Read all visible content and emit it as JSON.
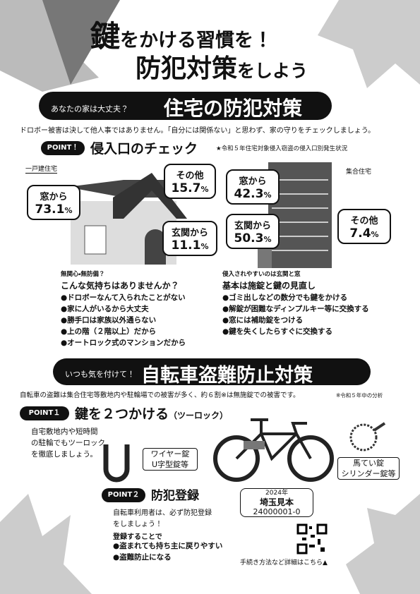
{
  "header": {
    "title_key": "鍵",
    "title_rest": "をかける習慣を！",
    "subtitle_main": "防犯対策",
    "subtitle_suffix": "をしよう"
  },
  "housing": {
    "tagline": "あなたの家は大丈夫？",
    "title": "住宅の防犯対策",
    "intro": "ドロボー被害は決して他人事ではありません。「自分には関係ない」と思わず、家の守りをチェックしましょう。",
    "point_badge": "POINT！",
    "point_heading": "侵入口のチェック",
    "stat_note": "★令和５年住宅対象侵入窃盗の侵入口別発生状況",
    "detached": {
      "label": "一戸建住宅",
      "items": [
        {
          "label": "窓から",
          "value": "73.1",
          "unit": "%"
        },
        {
          "label": "その他",
          "value": "15.7",
          "unit": "%"
        },
        {
          "label": "玄関から",
          "value": "11.1",
          "unit": "%"
        }
      ]
    },
    "apartment": {
      "label": "集合住宅",
      "items": [
        {
          "label": "窓から",
          "value": "42.3",
          "unit": "%"
        },
        {
          "label": "玄関から",
          "value": "50.3",
          "unit": "%"
        },
        {
          "label": "その他",
          "value": "7.4",
          "unit": "%"
        }
      ]
    },
    "mindset": {
      "kicker": "無関心・無防備？",
      "title": "こんな気持ちはありませんか？",
      "items": [
        "ドロボーなんて入られたことがない",
        "家に人がいるから大丈夫",
        "勝手口は家族以外通らない",
        "上の階（２階以上）だから",
        "オートロック式のマンションだから"
      ]
    },
    "basics": {
      "kicker": "侵入されやすいのは玄関と窓",
      "title": "基本は施錠と鍵の見直し",
      "items": [
        "ゴミ出しなどの数分でも鍵をかける",
        "解錠が困難なディンプルキー等に交換する",
        "窓には補助錠をつける",
        "鍵を失くしたらすぐに交換する"
      ]
    }
  },
  "bicycle": {
    "tagline": "いつも気を付けて！",
    "title": "自転車盗難防止対策",
    "intro": "自転車の盗難は集合住宅等敷地内や駐輪場での被害が多く、約６割※は無施錠での被害です。",
    "note": "※令和５年中の分析",
    "point1": {
      "badge": "POINT１",
      "heading": "鍵を２つかける",
      "subheading": "（ツーロック）",
      "text": [
        "自宅敷地内や短時間",
        "の駐輪でもツーロック",
        "を徹底しましょう。"
      ],
      "locks_left": [
        "ワイヤー錠",
        "U字型錠等"
      ],
      "locks_right": [
        "馬てい錠",
        "シリンダー錠等"
      ]
    },
    "point2": {
      "badge": "POINT２",
      "heading": "防犯登録",
      "text": [
        "自転車利用者は、必ず防犯登録",
        "をしましょう！"
      ],
      "lead": "登録することで",
      "benefits": [
        "盗まれても持ち主に戻りやすい",
        "盗難防止になる"
      ],
      "sticker": {
        "year": "2024年",
        "sample": "埼玉見本",
        "number": "24000001-0"
      },
      "qr_caption": "手続き方法など詳細はこちら▲"
    }
  }
}
